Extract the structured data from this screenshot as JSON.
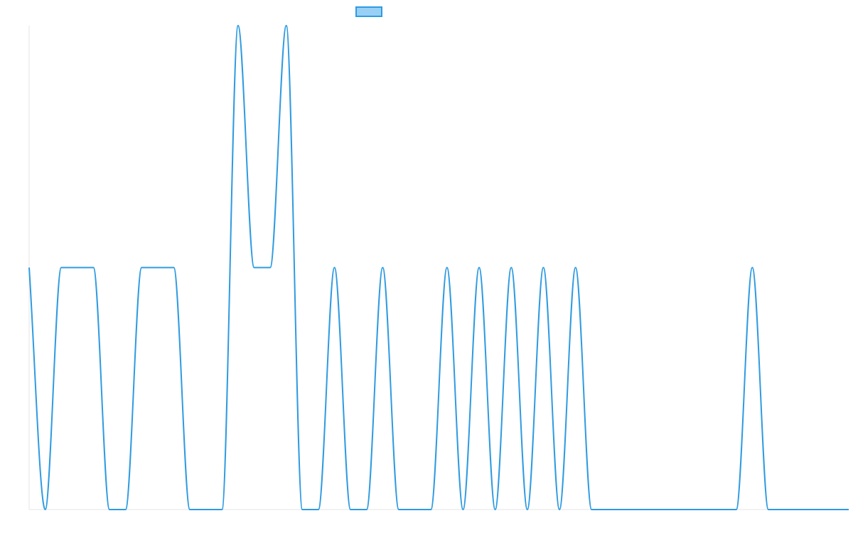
{
  "colors": {
    "series_line": "#2f9be0",
    "legend_fill": "#98d0f5",
    "axis": "#e6e6e6"
  },
  "chart_data": {
    "type": "line",
    "title": "",
    "xlabel": "",
    "ylabel": "",
    "grid": false,
    "legend": "top",
    "ylim": [
      0,
      2
    ],
    "xlim": [
      0,
      51
    ],
    "x": [
      0,
      1,
      2,
      3,
      4,
      5,
      6,
      7,
      8,
      9,
      10,
      11,
      12,
      13,
      14,
      15,
      16,
      17,
      18,
      19,
      20,
      21,
      22,
      23,
      24,
      25,
      26,
      27,
      28,
      29,
      30,
      31,
      32,
      33,
      34,
      35,
      36,
      37,
      38,
      39,
      40,
      41,
      42,
      43,
      44,
      45,
      46,
      47,
      48,
      49,
      50,
      51
    ],
    "series": [
      {
        "values": [
          1,
          0,
          1,
          1,
          1,
          0,
          0,
          1,
          1,
          1,
          0,
          0,
          0,
          2,
          1,
          1,
          2,
          0,
          0,
          1,
          0,
          0,
          1,
          0,
          0,
          0,
          1,
          0,
          1,
          0,
          1,
          0,
          1,
          0,
          1,
          0,
          0,
          0,
          0,
          0,
          0,
          0,
          0,
          0,
          0,
          1,
          0,
          0,
          0,
          0,
          0,
          0
        ]
      }
    ]
  }
}
